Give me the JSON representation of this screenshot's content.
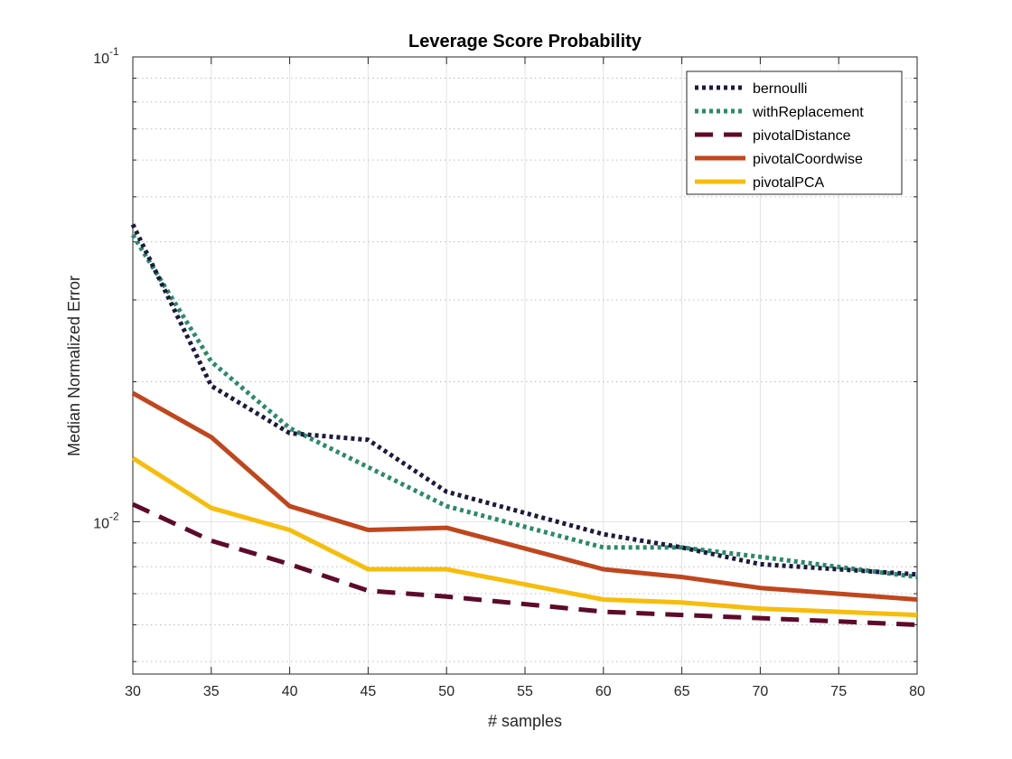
{
  "chart_data": {
    "type": "line",
    "title": "Leverage Score Probability",
    "xlabel": "# samples",
    "ylabel": "Median Normalized Error",
    "yscale": "log",
    "xlim": [
      30,
      80
    ],
    "ylim": [
      0.0047,
      0.1
    ],
    "grid": true,
    "legend_position": "top-right",
    "x": [
      30,
      35,
      40,
      45,
      50,
      60,
      65,
      70,
      80
    ],
    "xticks": [
      30,
      35,
      40,
      45,
      50,
      55,
      60,
      65,
      70,
      75,
      80
    ],
    "xtick_labels": [
      "30",
      "35",
      "40",
      "45",
      "50",
      "55",
      "60",
      "65",
      "70",
      "75",
      "80"
    ],
    "yticks": [
      0.01,
      0.1
    ],
    "ytick_labels": [
      {
        "base": "10",
        "exp": "-2"
      },
      {
        "base": "10",
        "exp": "-1"
      }
    ],
    "series": [
      {
        "name": "bernoulli",
        "color": "#1c1a3e",
        "style": "dotted",
        "values": [
          0.0436,
          0.0196,
          0.0155,
          0.015,
          0.0116,
          0.0094,
          0.0088,
          0.0081,
          0.0077
        ]
      },
      {
        "name": "withReplacement",
        "color": "#2b8a6a",
        "style": "dotted",
        "values": [
          0.0414,
          0.0221,
          0.0159,
          0.0131,
          0.0108,
          0.0088,
          0.0088,
          0.0084,
          0.0076
        ]
      },
      {
        "name": "pivotalDistance",
        "color": "#5e0a2b",
        "style": "dashed",
        "values": [
          0.0109,
          0.0091,
          0.0081,
          0.0071,
          0.0069,
          0.0064,
          0.0063,
          0.0062,
          0.006
        ]
      },
      {
        "name": "pivotalCoordwise",
        "color": "#c0461d",
        "style": "solid",
        "values": [
          0.0189,
          0.0152,
          0.0108,
          0.0096,
          0.0097,
          0.0079,
          0.0076,
          0.0072,
          0.0068
        ]
      },
      {
        "name": "pivotalPCA",
        "color": "#f7bd0b",
        "style": "solid",
        "values": [
          0.0137,
          0.0107,
          0.0096,
          0.0079,
          0.0079,
          0.0068,
          0.0067,
          0.0065,
          0.0063
        ]
      }
    ]
  }
}
